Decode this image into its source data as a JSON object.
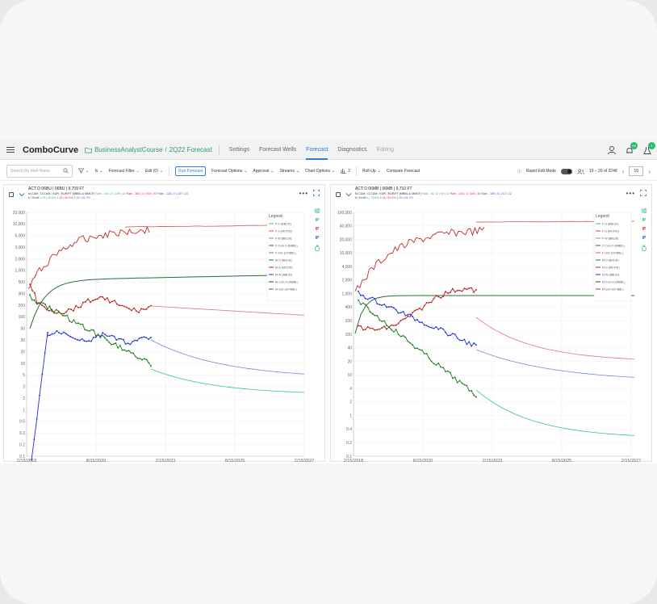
{
  "app": {
    "brand": "ComboCurve",
    "project": "BusinessAnalystCourse",
    "breadcrumb_sep": "/",
    "forecast": "2Q22 Forecast",
    "tabs": [
      {
        "label": "Settings"
      },
      {
        "label": "Forecast Wells"
      },
      {
        "label": "Forecast"
      },
      {
        "label": "Diagnostics"
      },
      {
        "label": "Editing"
      }
    ],
    "badge1": "99",
    "badge2": "1"
  },
  "toolbar": {
    "search_placeholder": "Search By Well Name",
    "forecast_filter": "Forecast Filter",
    "edit": "Edit (0)",
    "run_forecast": "Run Forecast",
    "forecast_options": "Forecast Options",
    "approval": "Approval",
    "streams": "Streams",
    "chart_options": "Chart Options",
    "grid_count": "2",
    "rollup": "Roll-Up",
    "compare": "Compare Forecast",
    "rapid_edit": "Rapid Edit Mode",
    "pagination": "19 – 20 of 2248",
    "page_size": "10"
  },
  "legend_title": "Legend",
  "legend_items": [
    {
      "label": "F G (BBL/D)",
      "color": "#2ecc71"
    },
    {
      "label": "F G (MCF/D)",
      "color": "#e74c3c"
    },
    {
      "label": "F W (BBL/D)",
      "color": "#6d8fcf"
    },
    {
      "label": "F Cum O (MBBL)",
      "color": "#2d6a2d"
    },
    {
      "label": "F G/O (CF/BBL)",
      "color": "#e05050"
    },
    {
      "label": "M O (BBL/D)",
      "color": "#1e7a1e"
    },
    {
      "label": "M G (MCF/D)",
      "color": "#b71c1c"
    },
    {
      "label": "M W (BBL/D)",
      "color": "#1f2fd6"
    },
    {
      "label": "M Cum O (MBBL)",
      "color": "#2d4a2d"
    },
    {
      "label": "M G/O (CF/BBL)",
      "color": "#c62828"
    }
  ],
  "colors": {
    "accent": "#2c7fd0",
    "brand_green": "#2e9d6a"
  },
  "panels": [
    {
      "title": "ACT D 06BU | 06BU | 9,709 FT",
      "line1": {
        "prefix": "M-CUM : D-CUM : EUR : EUR/FT (MBBL & MMCF)",
        "o": "Rate - 194 | 0 | 189 | 20",
        "g": "Rate - 360 | 0 | 905 | 93",
        "w": "Rate - 128 | 0 | 227 | 24"
      },
      "line2": {
        "prefix": "b / Di eff",
        "o": "1.03 | 40.5%",
        "g": "1.25 | 50.5%",
        "w": "1.02 | 32.7%"
      },
      "x_ticks": [
        "2/15/2018",
        "8/15/2020",
        "2/15/2023",
        "8/15/2025",
        "2/15/2027"
      ],
      "y_ticks": [
        "20,000",
        "10,000",
        "5,000",
        "3,000",
        "2,000",
        "1,000",
        "500",
        "300",
        "200",
        "100",
        "50",
        "30",
        "20",
        "10",
        "5",
        "3",
        "2",
        "1",
        "0.5",
        "0.3",
        "0.2",
        "0.1"
      ]
    },
    {
      "title": "ACT D 06MB | 06MB | 9,710 FT",
      "line1": {
        "prefix": "M-CUM : D-CUM : EUR : EUR/FT (MBBL & MMCF)",
        "o": "Rate - 92 | 0 | 93 | 10",
        "g": "Rate - 240 | 0 | 346 | 36",
        "w": "Rate - 189 | 0 | 212 | 22"
      },
      "line2": {
        "prefix": "b / Di eff",
        "o": "1 | 70.6%",
        "g": "1.04 | 59.2%",
        "w": "1.03 | 51.7%"
      },
      "x_ticks": [
        "2/15/2018",
        "8/15/2020",
        "2/15/2023",
        "8/15/2025",
        "2/15/2027"
      ],
      "y_ticks": [
        "100,000",
        "40,000",
        "20,000",
        "10,000",
        "4,000",
        "2,000",
        "1,000",
        "400",
        "200",
        "100",
        "40",
        "20",
        "10",
        "4",
        "2",
        "1",
        "0.4",
        "0.2",
        "0.1"
      ]
    }
  ],
  "side_rail": [
    "IP",
    "IP",
    "IP"
  ]
}
